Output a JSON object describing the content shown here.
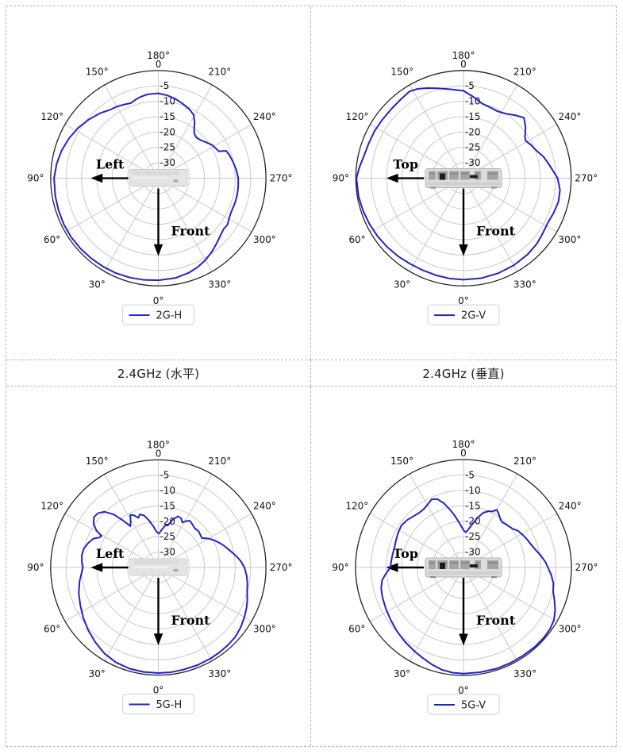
{
  "page": {
    "background": "#ffffff",
    "table_border_color": "#b7b7b7"
  },
  "captions": {
    "left": "2.4GHz (水平)",
    "right": "2.4GHz (垂直)"
  },
  "polar_config": {
    "angular_ticks_deg": [
      0,
      30,
      60,
      90,
      120,
      150,
      180,
      210,
      240,
      270,
      300,
      330
    ],
    "radial_ticks_db": [
      0,
      -5,
      -10,
      -15,
      -20,
      -25,
      -30
    ],
    "r_min_db": -35,
    "r_max_db": 0,
    "theta_zero": "bottom",
    "theta_direction": "counterclockwise",
    "grid": true,
    "grid_color": "#c9c9c9",
    "outer_ring_color": "#222222",
    "curve_color": "#2222cc",
    "tick_label_color": "#111111",
    "annotation_color": "#000000",
    "legend_border_color": "#cfcfcf",
    "legend_text_color": "#222222",
    "legend_position": "bottom-center"
  },
  "chart_data": [
    {
      "type": "polar-line",
      "cell": "top-left",
      "legend": "2G-H",
      "device": "top-view",
      "side_arrow_label": "Left",
      "front_arrow_label": "Front",
      "series": [
        {
          "name": "2G-H",
          "points": [
            [
              0,
              -1.8
            ],
            [
              8,
              -1.6
            ],
            [
              16,
              -1.4
            ],
            [
              24,
              -1.2
            ],
            [
              32,
              -1.1
            ],
            [
              40,
              -1.0
            ],
            [
              48,
              -0.9
            ],
            [
              56,
              -0.8
            ],
            [
              64,
              -0.8
            ],
            [
              72,
              -0.9
            ],
            [
              80,
              -1.0
            ],
            [
              90,
              -1.1
            ],
            [
              98,
              -1.6
            ],
            [
              106,
              -2.3
            ],
            [
              114,
              -3.2
            ],
            [
              122,
              -4.2
            ],
            [
              130,
              -5.4
            ],
            [
              138,
              -6.6
            ],
            [
              145,
              -7.8
            ],
            [
              150,
              -8.1
            ],
            [
              155,
              -8.6
            ],
            [
              160,
              -9.0
            ],
            [
              164,
              -8.4
            ],
            [
              168,
              -7.9
            ],
            [
              173,
              -7.5
            ],
            [
              180,
              -7.4
            ],
            [
              186,
              -7.9
            ],
            [
              192,
              -8.6
            ],
            [
              198,
              -9.5
            ],
            [
              204,
              -10.4
            ],
            [
              209,
              -11.4
            ],
            [
              213,
              -13.3
            ],
            [
              216,
              -15.2
            ],
            [
              219,
              -16.4
            ],
            [
              223,
              -16.9
            ],
            [
              228,
              -16.5
            ],
            [
              233,
              -15.6
            ],
            [
              238,
              -14.5
            ],
            [
              243,
              -13.9
            ],
            [
              246,
              -13.5
            ],
            [
              248,
              -11.2
            ],
            [
              252,
              -10.7
            ],
            [
              258,
              -10.1
            ],
            [
              264,
              -9.5
            ],
            [
              270,
              -9.0
            ],
            [
              276,
              -8.9
            ],
            [
              282,
              -8.8
            ],
            [
              288,
              -8.8
            ],
            [
              294,
              -8.9
            ],
            [
              299,
              -8.6
            ],
            [
              304,
              -7.9
            ],
            [
              308,
              -8.1
            ],
            [
              312,
              -7.6
            ],
            [
              318,
              -6.6
            ],
            [
              324,
              -5.4
            ],
            [
              330,
              -4.3
            ],
            [
              336,
              -3.4
            ],
            [
              342,
              -2.7
            ],
            [
              350,
              -2.1
            ],
            [
              360,
              -1.8
            ]
          ]
        }
      ]
    },
    {
      "type": "polar-line",
      "cell": "top-right",
      "legend": "2G-V",
      "device": "rear-view",
      "side_arrow_label": "Top",
      "front_arrow_label": "Front",
      "series": [
        {
          "name": "2G-V",
          "points": [
            [
              0,
              -2.0
            ],
            [
              8,
              -2.1
            ],
            [
              16,
              -2.2
            ],
            [
              24,
              -2.3
            ],
            [
              32,
              -2.2
            ],
            [
              40,
              -1.9
            ],
            [
              48,
              -1.6
            ],
            [
              56,
              -1.3
            ],
            [
              64,
              -1.0
            ],
            [
              72,
              -0.7
            ],
            [
              80,
              -0.4
            ],
            [
              90,
              -0.2
            ],
            [
              96,
              -1.0
            ],
            [
              102,
              -1.8
            ],
            [
              110,
              -2.2
            ],
            [
              118,
              -2.3
            ],
            [
              126,
              -2.5
            ],
            [
              134,
              -2.5
            ],
            [
              141,
              -2.3
            ],
            [
              148,
              -1.8
            ],
            [
              153,
              -2.4
            ],
            [
              158,
              -3.4
            ],
            [
              164,
              -4.6
            ],
            [
              171,
              -5.7
            ],
            [
              180,
              -6.6
            ],
            [
              187,
              -8.4
            ],
            [
              194,
              -10.0
            ],
            [
              200,
              -10.4
            ],
            [
              207,
              -10.6
            ],
            [
              213,
              -10.0
            ],
            [
              219,
              -8.6
            ],
            [
              225,
              -7.2
            ],
            [
              231,
              -9.0
            ],
            [
              236,
              -10.9
            ],
            [
              239,
              -11.4
            ],
            [
              244,
              -10.5
            ],
            [
              249,
              -9.7
            ],
            [
              255,
              -8.1
            ],
            [
              261,
              -6.8
            ],
            [
              270,
              -4.4
            ],
            [
              277,
              -3.4
            ],
            [
              284,
              -3.2
            ],
            [
              291,
              -3.6
            ],
            [
              298,
              -4.0
            ],
            [
              305,
              -3.6
            ],
            [
              312,
              -3.0
            ],
            [
              320,
              -2.6
            ],
            [
              330,
              -2.3
            ],
            [
              340,
              -2.1
            ],
            [
              350,
              -2.0
            ],
            [
              360,
              -2.0
            ]
          ]
        }
      ]
    },
    {
      "type": "polar-line",
      "cell": "bottom-left",
      "legend": "5G-H",
      "device": "top-view",
      "side_arrow_label": "Left",
      "front_arrow_label": "Front",
      "series": [
        {
          "name": "5G-H",
          "points": [
            [
              0,
              -0.7
            ],
            [
              8,
              -0.7
            ],
            [
              16,
              -0.8
            ],
            [
              24,
              -1.2
            ],
            [
              32,
              -2.0
            ],
            [
              40,
              -3.2
            ],
            [
              48,
              -4.4
            ],
            [
              56,
              -5.6
            ],
            [
              64,
              -6.8
            ],
            [
              72,
              -7.8
            ],
            [
              80,
              -9.0
            ],
            [
              86,
              -10.0
            ],
            [
              90,
              -10.5
            ],
            [
              94,
              -10.1
            ],
            [
              99,
              -9.8
            ],
            [
              104,
              -10.0
            ],
            [
              109,
              -10.8
            ],
            [
              114,
              -11.9
            ],
            [
              117,
              -13.5
            ],
            [
              119,
              -13.9
            ],
            [
              121,
              -11.5
            ],
            [
              124,
              -9.6
            ],
            [
              128,
              -8.4
            ],
            [
              132,
              -8.6
            ],
            [
              136,
              -9.8
            ],
            [
              140,
              -12.5
            ],
            [
              143,
              -15.8
            ],
            [
              146,
              -18.8
            ],
            [
              149,
              -17.5
            ],
            [
              152,
              -15.6
            ],
            [
              155,
              -16.3
            ],
            [
              158,
              -17.6
            ],
            [
              161,
              -16.7
            ],
            [
              165,
              -17.6
            ],
            [
              169,
              -19.5
            ],
            [
              173,
              -21.5
            ],
            [
              177,
              -23.3
            ],
            [
              181,
              -24.0
            ],
            [
              185,
              -22.8
            ],
            [
              189,
              -21.3
            ],
            [
              193,
              -20.9
            ],
            [
              197,
              -18.6
            ],
            [
              201,
              -17.2
            ],
            [
              205,
              -17.4
            ],
            [
              208,
              -18.4
            ],
            [
              211,
              -17.4
            ],
            [
              214,
              -16.7
            ],
            [
              218,
              -17.1
            ],
            [
              223,
              -17.6
            ],
            [
              228,
              -17.4
            ],
            [
              232,
              -17.7
            ],
            [
              236,
              -17.9
            ],
            [
              240,
              -16.2
            ],
            [
              244,
              -14.8
            ],
            [
              248,
              -13.6
            ],
            [
              252,
              -12.4
            ],
            [
              257,
              -11.0
            ],
            [
              262,
              -9.3
            ],
            [
              266,
              -8.0
            ],
            [
              270,
              -7.0
            ],
            [
              275,
              -6.2
            ],
            [
              280,
              -5.6
            ],
            [
              285,
              -5.1
            ],
            [
              290,
              -4.2
            ],
            [
              295,
              -3.4
            ],
            [
              300,
              -2.7
            ],
            [
              306,
              -1.9
            ],
            [
              312,
              -1.3
            ],
            [
              318,
              -1.1
            ],
            [
              324,
              -1.0
            ],
            [
              330,
              -0.9
            ],
            [
              338,
              -0.8
            ],
            [
              346,
              -0.8
            ],
            [
              353,
              -0.7
            ],
            [
              360,
              -0.7
            ]
          ]
        }
      ]
    },
    {
      "type": "polar-line",
      "cell": "bottom-right",
      "legend": "5G-V",
      "device": "rear-view",
      "side_arrow_label": "Top",
      "front_arrow_label": "Front",
      "series": [
        {
          "name": "5G-V",
          "points": [
            [
              0,
              -0.6
            ],
            [
              6,
              -0.7
            ],
            [
              12,
              -1.1
            ],
            [
              18,
              -1.9
            ],
            [
              24,
              -2.8
            ],
            [
              30,
              -3.5
            ],
            [
              38,
              -4.3
            ],
            [
              46,
              -5.1
            ],
            [
              54,
              -5.9
            ],
            [
              62,
              -6.5
            ],
            [
              70,
              -7.0
            ],
            [
              76,
              -7.5
            ],
            [
              81,
              -8.3
            ],
            [
              85,
              -9.6
            ],
            [
              90,
              -11.3
            ],
            [
              95,
              -11.5
            ],
            [
              100,
              -11.6
            ],
            [
              106,
              -11.7
            ],
            [
              112,
              -11.4
            ],
            [
              118,
              -11.0
            ],
            [
              124,
              -10.7
            ],
            [
              130,
              -11.1
            ],
            [
              136,
              -11.8
            ],
            [
              141,
              -12.2
            ],
            [
              146,
              -12.1
            ],
            [
              151,
              -11.4
            ],
            [
              155,
              -10.6
            ],
            [
              159,
              -11.2
            ],
            [
              163,
              -13.2
            ],
            [
              167,
              -15.8
            ],
            [
              171,
              -18.3
            ],
            [
              175,
              -20.6
            ],
            [
              180,
              -22.9
            ],
            [
              184,
              -23.6
            ],
            [
              188,
              -22.3
            ],
            [
              192,
              -20.4
            ],
            [
              196,
              -18.1
            ],
            [
              200,
              -16.1
            ],
            [
              204,
              -15.0
            ],
            [
              207,
              -14.6
            ],
            [
              210,
              -13.4
            ],
            [
              213,
              -14.1
            ],
            [
              217,
              -15.2
            ],
            [
              220,
              -15.7
            ],
            [
              224,
              -15.4
            ],
            [
              228,
              -15.1
            ],
            [
              232,
              -14.7
            ],
            [
              236,
              -13.7
            ],
            [
              241,
              -13.1
            ],
            [
              246,
              -12.5
            ],
            [
              251,
              -11.9
            ],
            [
              256,
              -11.0
            ],
            [
              261,
              -9.7
            ],
            [
              266,
              -8.4
            ],
            [
              270,
              -7.6
            ],
            [
              275,
              -6.4
            ],
            [
              280,
              -5.4
            ],
            [
              285,
              -4.9
            ],
            [
              290,
              -3.6
            ],
            [
              295,
              -2.2
            ],
            [
              300,
              -1.1
            ],
            [
              305,
              -0.6
            ],
            [
              311,
              -0.4
            ],
            [
              318,
              -0.4
            ],
            [
              326,
              -0.5
            ],
            [
              334,
              -0.5
            ],
            [
              342,
              -0.5
            ],
            [
              351,
              -0.6
            ],
            [
              360,
              -0.6
            ]
          ]
        }
      ]
    }
  ]
}
